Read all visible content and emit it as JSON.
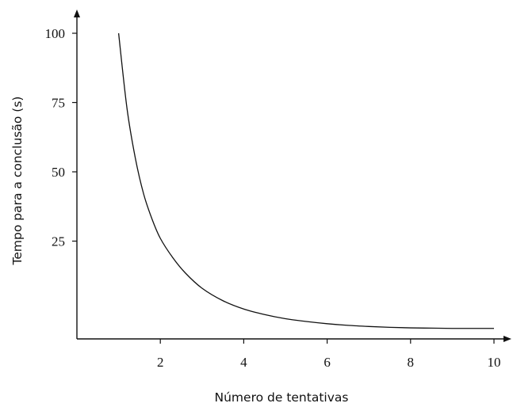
{
  "chart_data": {
    "type": "line",
    "xlabel": "Número de tentativas",
    "ylabel": "Tempo para a conclusão (s)",
    "xlim": [
      0,
      10
    ],
    "ylim": [
      -8,
      100
    ],
    "xticks": [
      2,
      4,
      6,
      8,
      10
    ],
    "yticks": [
      25,
      50,
      75,
      100
    ],
    "grid": false,
    "series": [
      {
        "x": [
          1.0,
          1.2,
          1.4,
          1.6,
          1.8,
          2.0,
          2.3,
          2.6,
          3.0,
          3.5,
          4.0,
          4.5,
          5.0,
          5.5,
          6.0,
          6.5,
          7.0,
          7.5,
          8.0,
          8.5,
          9.0,
          9.5,
          10.0
        ],
        "y": [
          100,
          73,
          55,
          42,
          33,
          26,
          19,
          13.5,
          8,
          3.5,
          0.5,
          -1.5,
          -3,
          -4,
          -4.8,
          -5.4,
          -5.8,
          -6.1,
          -6.3,
          -6.4,
          -6.5,
          -6.5,
          -6.5
        ]
      }
    ]
  }
}
